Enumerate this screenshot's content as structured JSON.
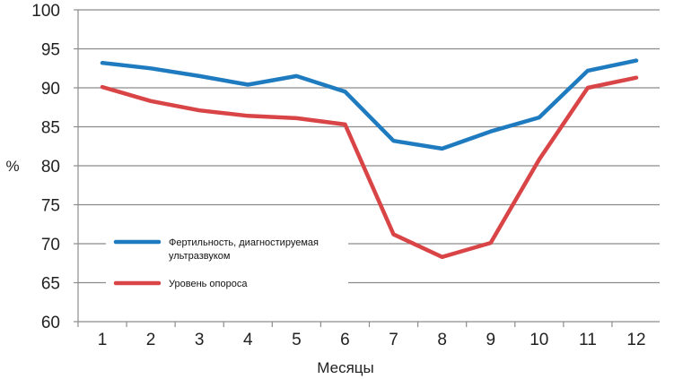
{
  "chart_data": {
    "type": "line",
    "title": "",
    "xlabel": "Месяцы",
    "ylabel": "%",
    "categories": [
      "1",
      "2",
      "3",
      "4",
      "5",
      "6",
      "7",
      "8",
      "9",
      "10",
      "11",
      "12"
    ],
    "ylim": [
      60,
      100
    ],
    "yticks": [
      "60",
      "65",
      "70",
      "75",
      "80",
      "85",
      "90",
      "95",
      "100"
    ],
    "grid": true,
    "legend_position": "bottom-left",
    "series": [
      {
        "name": "Фертильность, диагностируемая ультразвуком",
        "legend_lines": [
          "Фертильность, диагностируемая",
          "ультразвуком"
        ],
        "color": "#1f7bbf",
        "values": [
          93.2,
          92.5,
          91.5,
          90.4,
          91.5,
          89.5,
          83.2,
          82.2,
          84.4,
          86.2,
          92.2,
          93.5
        ]
      },
      {
        "name": "Уровень опороса",
        "legend_lines": [
          "Уровень опороса"
        ],
        "color": "#d94446",
        "values": [
          90.1,
          88.3,
          87.1,
          86.4,
          86.1,
          85.3,
          71.2,
          68.3,
          70.1,
          80.8,
          90.0,
          91.3
        ]
      }
    ]
  }
}
